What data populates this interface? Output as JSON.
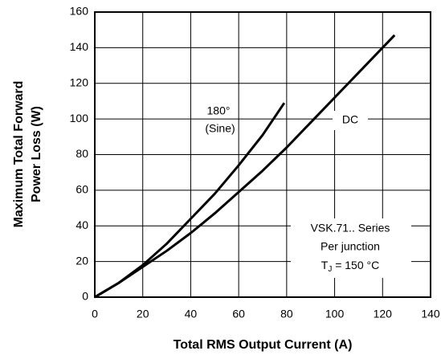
{
  "chart_data": {
    "type": "line",
    "x_label": "Total RMS Output Current (A)",
    "y_label": [
      "Maximum Total Forward",
      "Power Loss (W)"
    ],
    "xlim": [
      0,
      140
    ],
    "xticks": [
      0,
      20,
      40,
      60,
      80,
      100,
      120,
      140
    ],
    "ylim": [
      0,
      160
    ],
    "yticks": [
      0,
      20,
      40,
      60,
      80,
      100,
      120,
      140,
      160
    ],
    "grid": true,
    "series": [
      {
        "color": "#000000",
        "x": [
          0,
          10,
          20,
          30,
          40,
          50,
          60,
          70,
          79
        ],
        "values": [
          0,
          8,
          18,
          30,
          44,
          58,
          74,
          91,
          109
        ]
      },
      {
        "name": "DC",
        "color": "#000000",
        "x": [
          0,
          10,
          20,
          30,
          40,
          50,
          60,
          70,
          80,
          90,
          100,
          110,
          125
        ],
        "values": [
          0,
          8,
          17,
          26,
          36,
          47,
          59,
          71,
          84,
          98,
          112,
          126,
          147
        ]
      }
    ],
    "annotations": [
      "180°",
      "(Sine)",
      "VSK.71.. Series",
      "Per junction"
    ],
    "tj_label": {
      "text": "T",
      "subscript": "J",
      "suffix": " = 150 °C"
    }
  }
}
